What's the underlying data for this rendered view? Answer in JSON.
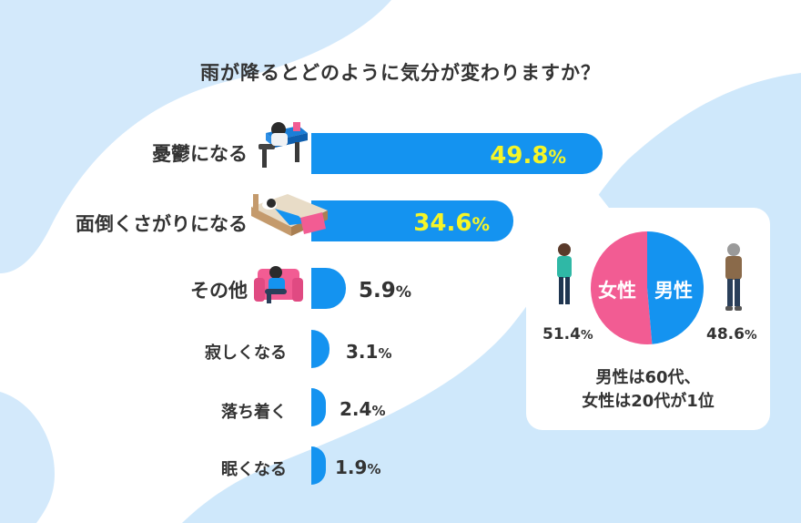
{
  "title": "雨が降るとどのように気分が変わりますか？",
  "colors": {
    "bar": "#1493f0",
    "bar_value_text": "#f5f528",
    "female": "#f25c93",
    "male": "#1493f0",
    "background_blob": "#cfe8fb"
  },
  "chart_data": [
    {
      "type": "bar",
      "orientation": "horizontal",
      "title": "雨が降るとどのように気分が変わりますか？",
      "categories": [
        "憂鬱になる",
        "面倒くさがりになる",
        "その他",
        "寂しくなる",
        "落ち着く",
        "眠くなる"
      ],
      "values": [
        49.8,
        34.6,
        5.9,
        3.1,
        2.4,
        1.9
      ],
      "value_labels": [
        "49.8",
        "34.6",
        "5.9",
        "3.1",
        "2.4",
        "1.9"
      ],
      "unit": "%",
      "xlim": [
        0,
        50
      ],
      "grid": false
    },
    {
      "type": "pie",
      "categories": [
        "女性",
        "男性"
      ],
      "values": [
        51.4,
        48.6
      ],
      "value_labels": [
        "51.4",
        "48.6"
      ],
      "unit": "%",
      "colors": [
        "#f25c93",
        "#1493f0"
      ]
    }
  ],
  "note": {
    "line1": "男性は60代、",
    "line2": "女性は20代が1位"
  }
}
